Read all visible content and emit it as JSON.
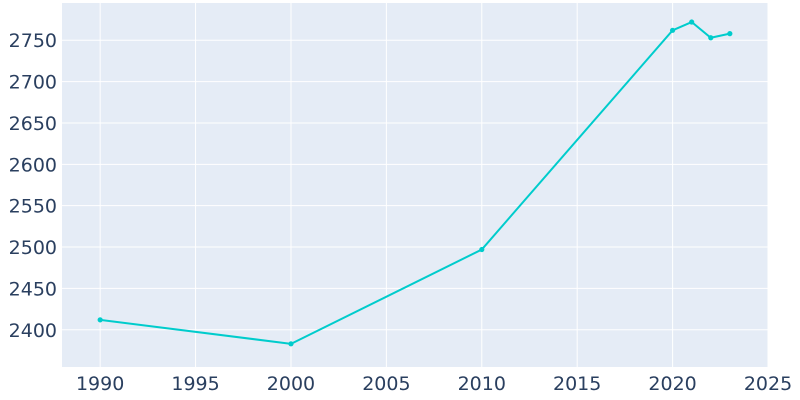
{
  "chart_data": {
    "type": "line",
    "title": "",
    "xlabel": "",
    "ylabel": "",
    "x": [
      1990,
      2000,
      2010,
      2020,
      2021,
      2022,
      2023
    ],
    "series": [
      {
        "values": [
          2412,
          2383,
          2497,
          2762,
          2772,
          2753,
          2758
        ],
        "color": "#00cccc"
      }
    ],
    "xlim": [
      1988,
      2025
    ],
    "ylim": [
      2355,
      2795
    ],
    "xticks": [
      1990,
      1995,
      2000,
      2005,
      2010,
      2015,
      2020,
      2025
    ],
    "yticks": [
      2400,
      2450,
      2500,
      2550,
      2600,
      2650,
      2700,
      2750
    ],
    "grid": true,
    "legend": "none",
    "colors": {
      "plot_background": "#e5ecf6",
      "grid": "#ffffff",
      "tick_text": "#2a3f5f"
    }
  }
}
